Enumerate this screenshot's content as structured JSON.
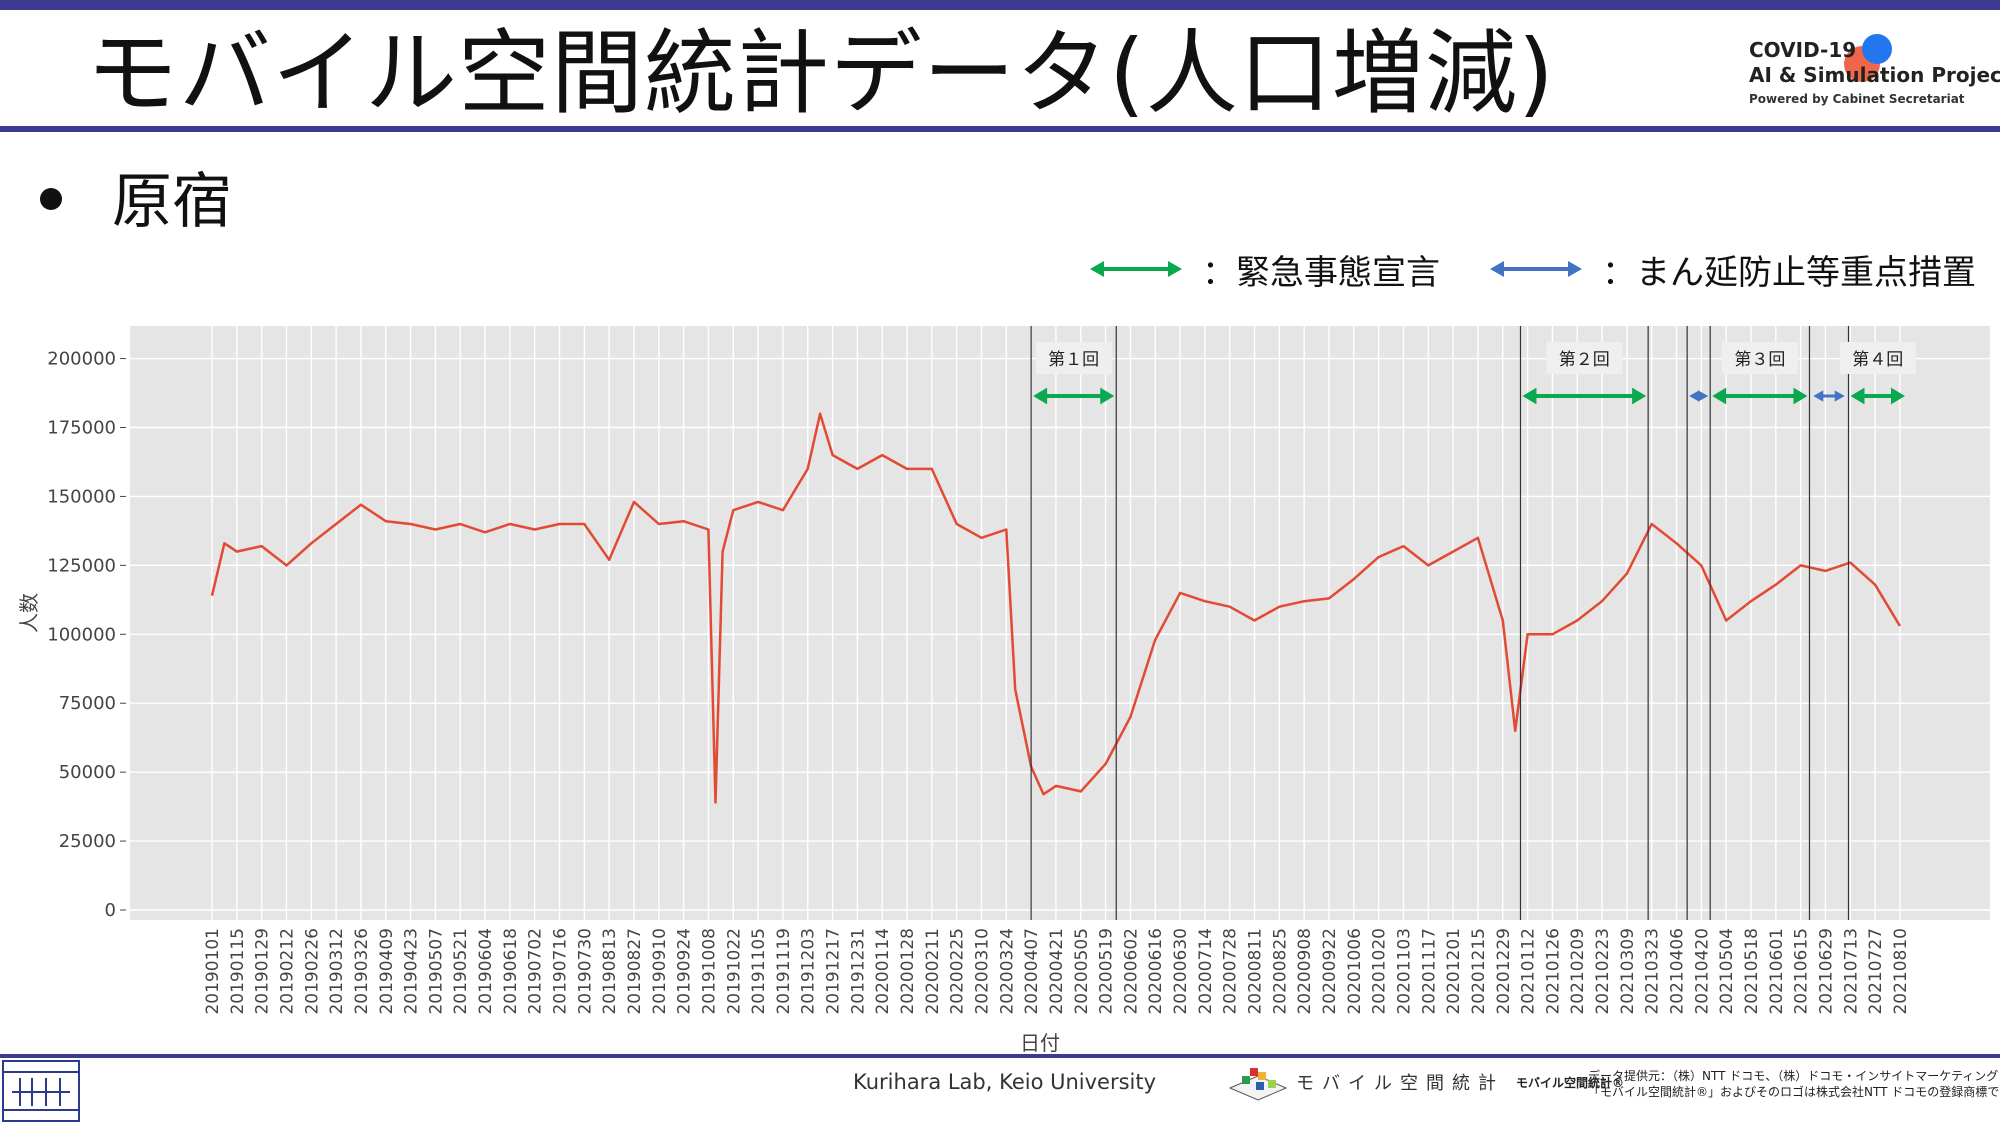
{
  "slide": {
    "title": "モバイル空間統計データ(人口増減)",
    "bullet": "原宿"
  },
  "logo": {
    "line1": "COVID-19",
    "line2": "AI & Simulation Project",
    "line3": "Powered by Cabinet Secretariat"
  },
  "legend": [
    {
      "label": "：緊急事態宣言",
      "color": "#0aa84f"
    },
    {
      "label": "：まん延防止等重点措置",
      "color": "#4472c4"
    }
  ],
  "footer": {
    "lab": "Kurihara Lab, Keio University",
    "mobile_logo_text": "モバイル空間統計",
    "mobile_reg": "モバイル空間統計®",
    "credit_line1": "データ提供元：（株）NTT ドコモ、（株）ドコモ・インサイトマーケティング",
    "credit_line2": "「モバイル空間統計®」およびそのロゴは株式会社NTT ドコモの登録商標です。"
  },
  "chart_data": {
    "type": "line",
    "xlabel": "日付",
    "ylabel": "人数",
    "ylim": [
      0,
      210000
    ],
    "yticks": [
      0,
      25000,
      50000,
      75000,
      100000,
      125000,
      150000,
      175000,
      200000
    ],
    "grid": true,
    "line_color": "#e24a33",
    "background": "#e5e5e5",
    "x_range": [
      "2019-01-01",
      "2021-08-14"
    ],
    "x_tick_labels": [
      "20190101",
      "20190115",
      "20190129",
      "20190212",
      "20190226",
      "20190312",
      "20190326",
      "20190409",
      "20190423",
      "20190507",
      "20190521",
      "20190604",
      "20190618",
      "20190702",
      "20190716",
      "20190730",
      "20190813",
      "20190827",
      "20190910",
      "20190924",
      "20191008",
      "20191022",
      "20191105",
      "20191119",
      "20191203",
      "20191217",
      "20191231",
      "20200114",
      "20200128",
      "20200211",
      "20200225",
      "20200310",
      "20200324",
      "20200407",
      "20200421",
      "20200505",
      "20200519",
      "20200602",
      "20200616",
      "20200630",
      "20200714",
      "20200728",
      "20200811",
      "20200825",
      "20200908",
      "20200922",
      "20201006",
      "20201020",
      "20201103",
      "20201117",
      "20201201",
      "20201215",
      "20201229",
      "20210112",
      "20210126",
      "20210209",
      "20210223",
      "20210309",
      "20210323",
      "20210406",
      "20210420",
      "20210504",
      "20210518",
      "20210601",
      "20210615",
      "20210629",
      "20210713",
      "20210727",
      "20210810"
    ],
    "series": [
      {
        "date": "2019-01-01",
        "value": 114000
      },
      {
        "date": "2019-01-08",
        "value": 133000
      },
      {
        "date": "2019-01-15",
        "value": 130000
      },
      {
        "date": "2019-01-29",
        "value": 132000
      },
      {
        "date": "2019-02-12",
        "value": 125000
      },
      {
        "date": "2019-02-26",
        "value": 133000
      },
      {
        "date": "2019-03-12",
        "value": 140000
      },
      {
        "date": "2019-03-26",
        "value": 147000
      },
      {
        "date": "2019-04-09",
        "value": 141000
      },
      {
        "date": "2019-04-23",
        "value": 140000
      },
      {
        "date": "2019-05-07",
        "value": 138000
      },
      {
        "date": "2019-05-21",
        "value": 140000
      },
      {
        "date": "2019-06-04",
        "value": 137000
      },
      {
        "date": "2019-06-18",
        "value": 140000
      },
      {
        "date": "2019-07-02",
        "value": 138000
      },
      {
        "date": "2019-07-16",
        "value": 140000
      },
      {
        "date": "2019-07-30",
        "value": 140000
      },
      {
        "date": "2019-08-13",
        "value": 127000
      },
      {
        "date": "2019-08-27",
        "value": 148000
      },
      {
        "date": "2019-09-10",
        "value": 140000
      },
      {
        "date": "2019-09-24",
        "value": 141000
      },
      {
        "date": "2019-10-08",
        "value": 138000
      },
      {
        "date": "2019-10-12",
        "value": 39000
      },
      {
        "date": "2019-10-16",
        "value": 130000
      },
      {
        "date": "2019-10-22",
        "value": 145000
      },
      {
        "date": "2019-11-05",
        "value": 148000
      },
      {
        "date": "2019-11-19",
        "value": 145000
      },
      {
        "date": "2019-12-03",
        "value": 160000
      },
      {
        "date": "2019-12-10",
        "value": 180000
      },
      {
        "date": "2019-12-17",
        "value": 165000
      },
      {
        "date": "2019-12-31",
        "value": 160000
      },
      {
        "date": "2020-01-14",
        "value": 165000
      },
      {
        "date": "2020-01-28",
        "value": 160000
      },
      {
        "date": "2020-02-11",
        "value": 160000
      },
      {
        "date": "2020-02-25",
        "value": 140000
      },
      {
        "date": "2020-03-10",
        "value": 135000
      },
      {
        "date": "2020-03-24",
        "value": 138000
      },
      {
        "date": "2020-03-29",
        "value": 80000
      },
      {
        "date": "2020-04-07",
        "value": 52000
      },
      {
        "date": "2020-04-14",
        "value": 42000
      },
      {
        "date": "2020-04-21",
        "value": 45000
      },
      {
        "date": "2020-05-05",
        "value": 43000
      },
      {
        "date": "2020-05-19",
        "value": 53000
      },
      {
        "date": "2020-06-02",
        "value": 70000
      },
      {
        "date": "2020-06-16",
        "value": 98000
      },
      {
        "date": "2020-06-30",
        "value": 115000
      },
      {
        "date": "2020-07-14",
        "value": 112000
      },
      {
        "date": "2020-07-28",
        "value": 110000
      },
      {
        "date": "2020-08-11",
        "value": 105000
      },
      {
        "date": "2020-08-25",
        "value": 110000
      },
      {
        "date": "2020-09-08",
        "value": 112000
      },
      {
        "date": "2020-09-22",
        "value": 113000
      },
      {
        "date": "2020-10-06",
        "value": 120000
      },
      {
        "date": "2020-10-20",
        "value": 128000
      },
      {
        "date": "2020-11-03",
        "value": 132000
      },
      {
        "date": "2020-11-17",
        "value": 125000
      },
      {
        "date": "2020-12-01",
        "value": 130000
      },
      {
        "date": "2020-12-15",
        "value": 135000
      },
      {
        "date": "2020-12-29",
        "value": 105000
      },
      {
        "date": "2021-01-05",
        "value": 65000
      },
      {
        "date": "2021-01-12",
        "value": 100000
      },
      {
        "date": "2021-01-26",
        "value": 100000
      },
      {
        "date": "2021-02-09",
        "value": 105000
      },
      {
        "date": "2021-02-23",
        "value": 112000
      },
      {
        "date": "2021-03-09",
        "value": 122000
      },
      {
        "date": "2021-03-23",
        "value": 140000
      },
      {
        "date": "2021-04-06",
        "value": 133000
      },
      {
        "date": "2021-04-20",
        "value": 125000
      },
      {
        "date": "2021-05-04",
        "value": 105000
      },
      {
        "date": "2021-05-18",
        "value": 112000
      },
      {
        "date": "2021-06-01",
        "value": 118000
      },
      {
        "date": "2021-06-15",
        "value": 125000
      },
      {
        "date": "2021-06-29",
        "value": 123000
      },
      {
        "date": "2021-07-13",
        "value": 126000
      },
      {
        "date": "2021-07-27",
        "value": 118000
      },
      {
        "date": "2021-08-10",
        "value": 103000
      }
    ],
    "vlines": [
      "2020-04-07",
      "2020-05-25",
      "2021-01-08",
      "2021-03-21",
      "2021-04-12",
      "2021-04-25",
      "2021-06-20",
      "2021-07-12"
    ],
    "periods": [
      {
        "label": "第１回",
        "start": "2020-04-07",
        "end": "2020-05-25",
        "type": "emergency"
      },
      {
        "label": "第２回",
        "start": "2021-01-08",
        "end": "2021-03-21",
        "type": "emergency"
      },
      {
        "label": "",
        "start": "2021-04-12",
        "end": "2021-04-25",
        "type": "priority"
      },
      {
        "label": "第３回",
        "start": "2021-04-25",
        "end": "2021-06-20",
        "type": "emergency"
      },
      {
        "label": "",
        "start": "2021-06-21",
        "end": "2021-07-11",
        "type": "priority"
      },
      {
        "label": "第４回",
        "start": "2021-07-12",
        "end": "2021-08-14",
        "type": "emergency"
      }
    ]
  }
}
